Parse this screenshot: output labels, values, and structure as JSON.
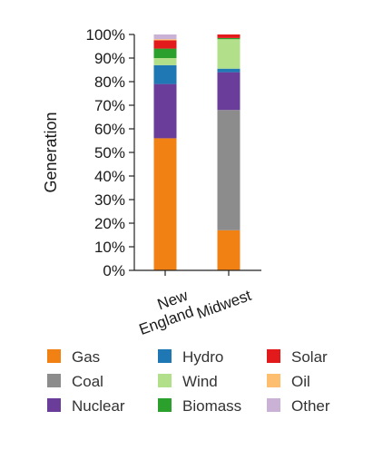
{
  "chart_data": {
    "type": "bar",
    "stacked": true,
    "ylabel": "Generation",
    "xlabel": "",
    "ylim": [
      0,
      100
    ],
    "yticks": [
      "0%",
      "10%",
      "20%",
      "30%",
      "40%",
      "50%",
      "60%",
      "70%",
      "80%",
      "90%",
      "100%"
    ],
    "categories": [
      {
        "lines": [
          "New",
          "England"
        ]
      },
      {
        "lines": [
          "Midwest"
        ]
      }
    ],
    "series": [
      {
        "name": "Gas",
        "color": "#f28114",
        "values": [
          56,
          17
        ]
      },
      {
        "name": "Coal",
        "color": "#8c8c8c",
        "values": [
          0,
          51
        ]
      },
      {
        "name": "Nuclear",
        "color": "#6a3d9a",
        "values": [
          23,
          16
        ]
      },
      {
        "name": "Hydro",
        "color": "#1f77b4",
        "values": [
          8,
          1.5
        ]
      },
      {
        "name": "Wind",
        "color": "#b2df8a",
        "values": [
          3,
          12.5
        ]
      },
      {
        "name": "Biomass",
        "color": "#2ca02c",
        "values": [
          4,
          0.5
        ]
      },
      {
        "name": "Solar",
        "color": "#e31a1c",
        "values": [
          3.5,
          1.5
        ]
      },
      {
        "name": "Oil",
        "color": "#fdbf6f",
        "values": [
          0.5,
          0
        ]
      },
      {
        "name": "Other",
        "color": "#cab2d6",
        "values": [
          2,
          0
        ]
      }
    ],
    "legend": {
      "placement": "bottom",
      "columns": [
        [
          "Gas",
          "Coal",
          "Nuclear"
        ],
        [
          "Hydro",
          "Wind",
          "Biomass"
        ],
        [
          "Solar",
          "Oil",
          "Other"
        ]
      ]
    },
    "grid": false
  }
}
